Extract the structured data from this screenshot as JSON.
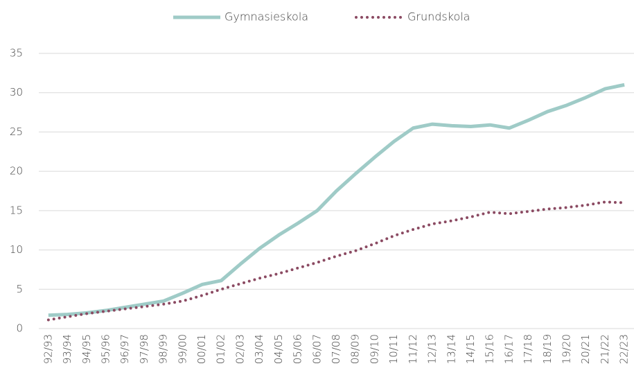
{
  "chart_data": {
    "type": "line",
    "categories": [
      "92/93",
      "93/94",
      "94/95",
      "95/96",
      "96/97",
      "97/98",
      "98/99",
      "99/00",
      "00/01",
      "01/02",
      "02/03",
      "03/04",
      "04/05",
      "05/06",
      "06/07",
      "07/08",
      "08/09",
      "09/10",
      "10/11",
      "11/12",
      "12/13",
      "13/14",
      "14/15",
      "15/16",
      "16/17",
      "17/18",
      "18/19",
      "19/20",
      "20/21",
      "21/22",
      "22/23"
    ],
    "series": [
      {
        "name": "Gymnasieskola",
        "color": "#9fcbc7",
        "style": "solid",
        "values": [
          1.7,
          1.8,
          2.0,
          2.3,
          2.7,
          3.1,
          3.5,
          4.5,
          5.6,
          6.1,
          8.2,
          10.2,
          11.9,
          13.4,
          15.0,
          17.5,
          19.7,
          21.8,
          23.8,
          25.5,
          26.0,
          25.8,
          25.7,
          25.9,
          25.5,
          26.5,
          27.6,
          28.4,
          29.4,
          30.5,
          31.0
        ]
      },
      {
        "name": "Grundskola",
        "color": "#8b4a62",
        "style": "dotted",
        "values": [
          1.1,
          1.5,
          1.9,
          2.2,
          2.5,
          2.8,
          3.1,
          3.5,
          4.2,
          5.0,
          5.7,
          6.4,
          7.0,
          7.7,
          8.4,
          9.2,
          9.9,
          10.8,
          11.8,
          12.6,
          13.3,
          13.7,
          14.2,
          14.8,
          14.6,
          14.9,
          15.2,
          15.4,
          15.7,
          16.1,
          16.0
        ]
      }
    ],
    "ylim": [
      0,
      35
    ],
    "yticks": [
      0,
      5,
      10,
      15,
      20,
      25,
      30,
      35
    ],
    "grid": true,
    "legend": "top"
  }
}
